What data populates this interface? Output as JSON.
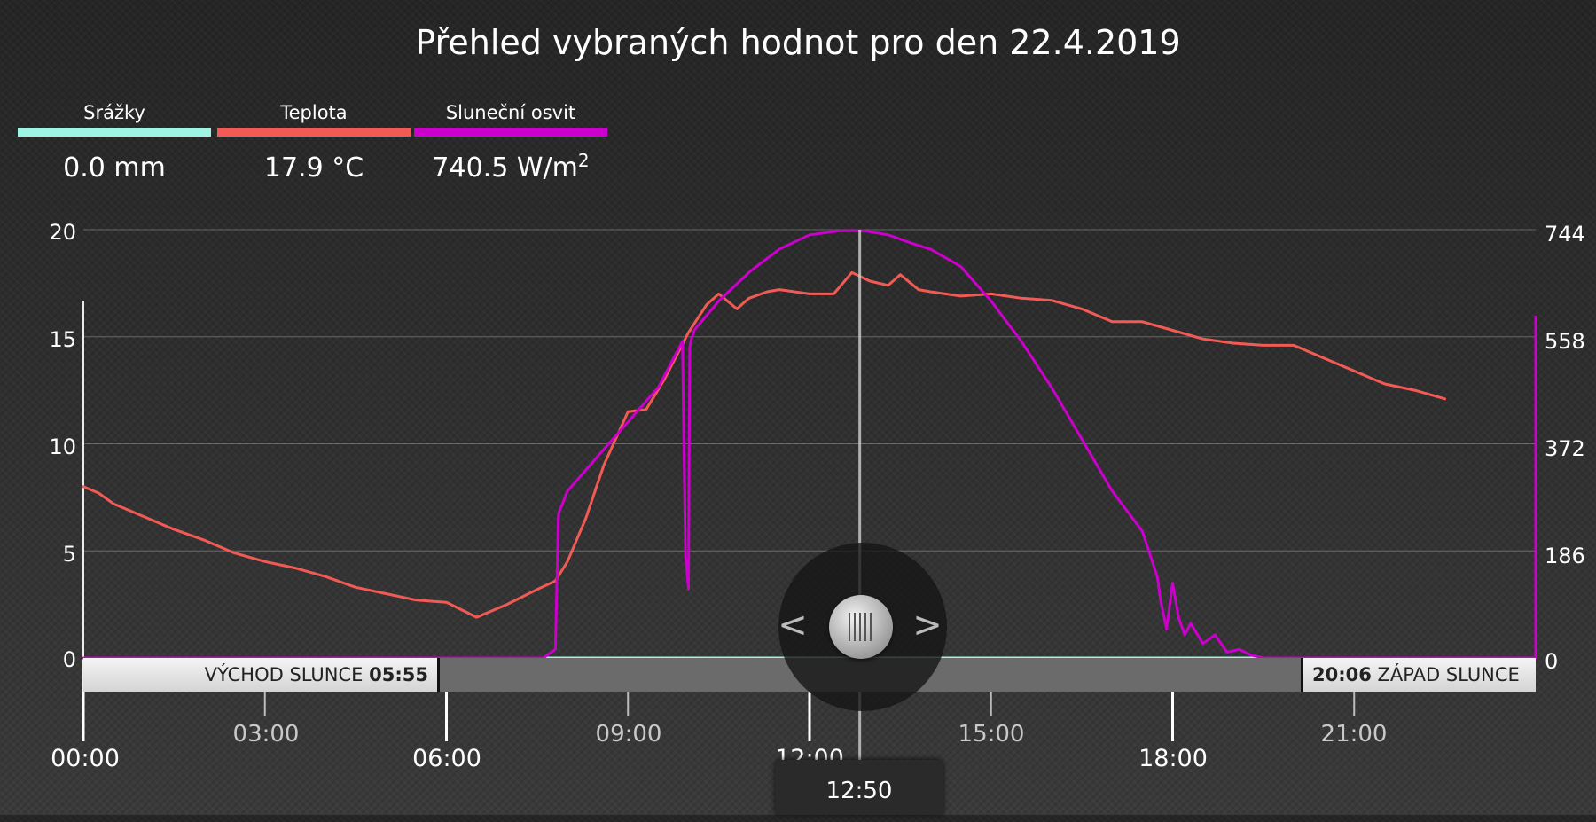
{
  "title": "Přehled vybraných hodnot pro den 22.4.2019",
  "legend": [
    {
      "name": "Srážky",
      "value": "0.0 mm",
      "unit_sup": "",
      "color": "#9ff5e3"
    },
    {
      "name": "Teplota",
      "value": "17.9 °C",
      "unit_sup": "",
      "color": "#f25a55"
    },
    {
      "name": "Sluneční osvit",
      "value": "740.5 W/m",
      "unit_sup": "2",
      "color": "#cc00cc"
    }
  ],
  "sun": {
    "sunrise_label": "VÝCHOD SLUNCE",
    "sunrise_time": "05:55",
    "sunset_label": "ZÁPAD SLUNCE",
    "sunset_time": "20:06"
  },
  "navigator": {
    "prev_glyph": "<",
    "next_glyph": ">",
    "current_time": "12:50",
    "current_hour": 12.83
  },
  "chart_data": {
    "type": "line",
    "x_unit": "hour of day",
    "xlim": [
      0,
      24
    ],
    "x_ticks": [
      {
        "label": "00:00",
        "value": 0,
        "major": true
      },
      {
        "label": "03:00",
        "value": 3,
        "major": false
      },
      {
        "label": "06:00",
        "value": 6,
        "major": true
      },
      {
        "label": "09:00",
        "value": 9,
        "major": false
      },
      {
        "label": "12:00",
        "value": 12,
        "major": true
      },
      {
        "label": "15:00",
        "value": 15,
        "major": false
      },
      {
        "label": "18:00",
        "value": 18,
        "major": true
      },
      {
        "label": "21:00",
        "value": 21,
        "major": false
      }
    ],
    "y_left": {
      "ylim": [
        0,
        20
      ],
      "ticks": [
        "0",
        "5",
        "10",
        "15",
        "20"
      ]
    },
    "y_right": {
      "ylim": [
        0,
        744
      ],
      "ticks": [
        "0",
        "186",
        "372",
        "558",
        "744"
      ]
    },
    "grid": true,
    "series": [
      {
        "name": "Srážky",
        "axis": "left",
        "color": "#9ff5e3",
        "x": [
          0,
          22.5
        ],
        "y": [
          0,
          0
        ]
      },
      {
        "name": "Teplota",
        "axis": "left",
        "color": "#f25a55",
        "x": [
          0,
          0.25,
          0.5,
          1,
          1.5,
          2,
          2.5,
          3,
          3.5,
          4,
          4.5,
          5,
          5.5,
          6,
          6.5,
          7,
          7.5,
          7.8,
          8,
          8.3,
          8.6,
          9,
          9.3,
          9.6,
          10,
          10.3,
          10.5,
          10.8,
          11,
          11.3,
          11.5,
          12,
          12.4,
          12.7,
          13,
          13.3,
          13.5,
          13.8,
          14,
          14.5,
          15,
          15.5,
          16,
          16.5,
          17,
          17.5,
          18,
          18.5,
          19,
          19.5,
          20,
          20.5,
          21,
          21.5,
          22,
          22.5
        ],
        "y": [
          8.0,
          7.7,
          7.2,
          6.6,
          6.0,
          5.5,
          4.9,
          4.5,
          4.2,
          3.8,
          3.3,
          3.0,
          2.7,
          2.6,
          1.9,
          2.5,
          3.2,
          3.6,
          4.5,
          6.5,
          9.0,
          11.5,
          11.6,
          13.0,
          15.2,
          16.5,
          17.0,
          16.3,
          16.8,
          17.1,
          17.2,
          17.0,
          17.0,
          18.0,
          17.6,
          17.4,
          17.9,
          17.2,
          17.1,
          16.9,
          17.0,
          16.8,
          16.7,
          16.3,
          15.7,
          15.7,
          15.3,
          14.9,
          14.7,
          14.6,
          14.6,
          14.0,
          13.4,
          12.8,
          12.5,
          12.1
        ]
      },
      {
        "name": "Sluneční osvit",
        "axis": "right",
        "color": "#cc00cc",
        "x": [
          0,
          7.6,
          7.8,
          7.85,
          8,
          8.5,
          9,
          9.5,
          9.9,
          9.95,
          10.0,
          10.02,
          10.05,
          10.1,
          10.5,
          11,
          11.5,
          12,
          12.5,
          12.9,
          13.3,
          13.7,
          14,
          14.5,
          15,
          15.5,
          16,
          16.5,
          17,
          17.5,
          17.75,
          17.8,
          17.9,
          18.0,
          18.1,
          18.2,
          18.3,
          18.5,
          18.7,
          18.9,
          19.1,
          19.3,
          19.5,
          22.5,
          24.0,
          24.0
        ],
        "y": [
          0,
          0,
          15,
          250,
          290,
          350,
          410,
          470,
          550,
          180,
          120,
          540,
          555,
          570,
          620,
          670,
          710,
          735,
          742,
          742,
          735,
          720,
          710,
          680,
          620,
          550,
          470,
          380,
          290,
          220,
          140,
          100,
          50,
          130,
          70,
          40,
          60,
          25,
          40,
          10,
          15,
          5,
          0,
          0,
          0,
          558
        ]
      }
    ]
  }
}
